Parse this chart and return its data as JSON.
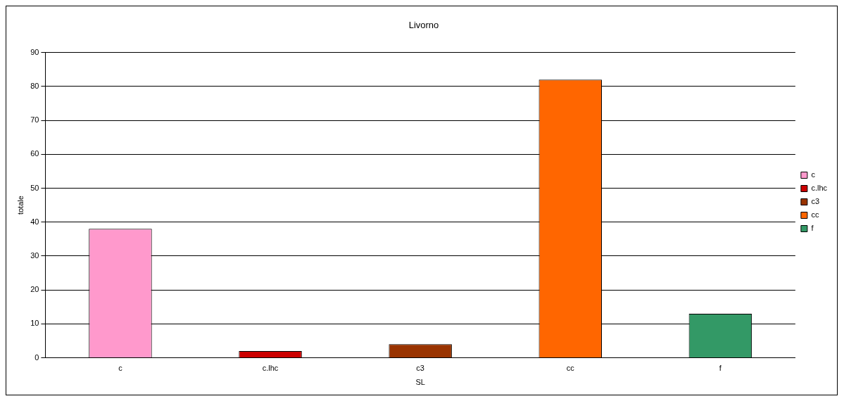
{
  "chart_data": {
    "type": "bar",
    "title": "Livorno",
    "xlabel": "SL",
    "ylabel": "totale",
    "categories": [
      "c",
      "c.lhc",
      "c3",
      "cc",
      "f"
    ],
    "ylim": [
      0,
      90
    ],
    "yticks": [
      0,
      10,
      20,
      30,
      40,
      50,
      60,
      70,
      80,
      90
    ],
    "grid": "y",
    "legend": "right",
    "series": [
      {
        "name": "c",
        "color": "#ff99cc",
        "values": [
          38,
          null,
          null,
          null,
          null
        ]
      },
      {
        "name": "c.lhc",
        "color": "#cc0000",
        "values": [
          null,
          2,
          null,
          null,
          null
        ]
      },
      {
        "name": "c3",
        "color": "#993300",
        "values": [
          null,
          null,
          4,
          null,
          null
        ]
      },
      {
        "name": "cc",
        "color": "#ff6600",
        "values": [
          null,
          null,
          null,
          82,
          null
        ]
      },
      {
        "name": "f",
        "color": "#339966",
        "values": [
          null,
          null,
          null,
          null,
          13
        ]
      }
    ]
  }
}
